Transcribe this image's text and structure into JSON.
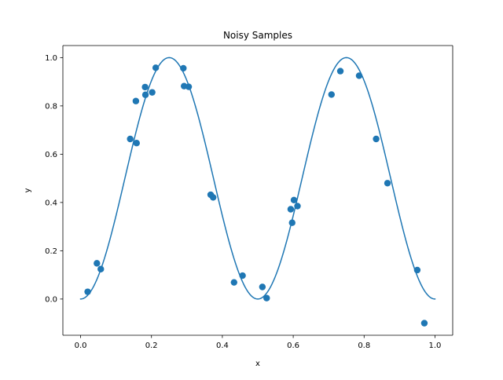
{
  "chart_data": {
    "type": "scatter",
    "title": "Noisy Samples",
    "xlabel": "x",
    "ylabel": "y",
    "xlim": [
      -0.05,
      1.05
    ],
    "ylim": [
      -0.15,
      1.05
    ],
    "xticks": [
      0.0,
      0.2,
      0.4,
      0.6,
      0.8,
      1.0
    ],
    "xtick_labels": [
      "0.0",
      "0.2",
      "0.4",
      "0.6",
      "0.8",
      "1.0"
    ],
    "yticks": [
      0.0,
      0.2,
      0.4,
      0.6,
      0.8,
      1.0
    ],
    "ytick_labels": [
      "0.0",
      "0.2",
      "0.4",
      "0.6",
      "0.8",
      "1.0"
    ],
    "grid": false,
    "legend": false,
    "color": "#1f77b4",
    "curve": {
      "kind": "line",
      "function": "sin^2(2*pi*x)",
      "x_range": [
        0.0,
        1.0
      ]
    },
    "points": [
      {
        "x": 0.02,
        "y": 0.03
      },
      {
        "x": 0.046,
        "y": 0.148
      },
      {
        "x": 0.057,
        "y": 0.124
      },
      {
        "x": 0.14,
        "y": 0.663
      },
      {
        "x": 0.156,
        "y": 0.82
      },
      {
        "x": 0.158,
        "y": 0.646
      },
      {
        "x": 0.182,
        "y": 0.878
      },
      {
        "x": 0.183,
        "y": 0.846
      },
      {
        "x": 0.202,
        "y": 0.856
      },
      {
        "x": 0.212,
        "y": 0.958
      },
      {
        "x": 0.29,
        "y": 0.956
      },
      {
        "x": 0.292,
        "y": 0.882
      },
      {
        "x": 0.305,
        "y": 0.879
      },
      {
        "x": 0.367,
        "y": 0.432
      },
      {
        "x": 0.374,
        "y": 0.421
      },
      {
        "x": 0.433,
        "y": 0.069
      },
      {
        "x": 0.457,
        "y": 0.097
      },
      {
        "x": 0.513,
        "y": 0.05
      },
      {
        "x": 0.525,
        "y": 0.004
      },
      {
        "x": 0.593,
        "y": 0.372
      },
      {
        "x": 0.597,
        "y": 0.316
      },
      {
        "x": 0.602,
        "y": 0.41
      },
      {
        "x": 0.612,
        "y": 0.385
      },
      {
        "x": 0.708,
        "y": 0.847
      },
      {
        "x": 0.733,
        "y": 0.944
      },
      {
        "x": 0.786,
        "y": 0.925
      },
      {
        "x": 0.834,
        "y": 0.663
      },
      {
        "x": 0.866,
        "y": 0.48
      },
      {
        "x": 0.95,
        "y": 0.12
      },
      {
        "x": 0.97,
        "y": -0.1
      }
    ]
  }
}
